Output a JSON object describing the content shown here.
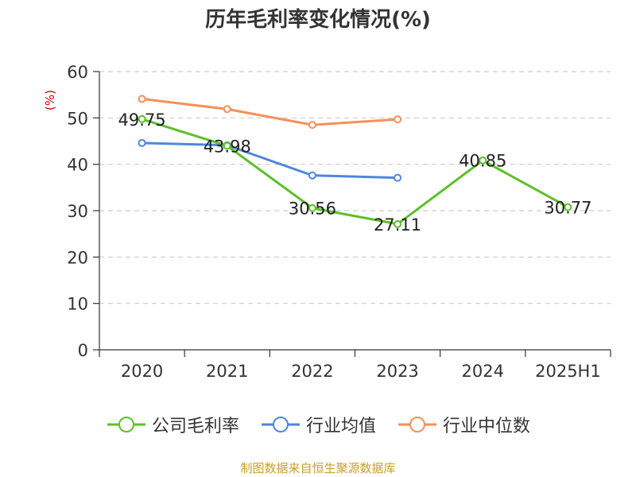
{
  "chart_data": {
    "type": "line",
    "title": "历年毛利率变化情况(%)",
    "ylabel": "(%)",
    "xlabel": "",
    "categories": [
      "2020",
      "2021",
      "2022",
      "2023",
      "2024",
      "2025H1"
    ],
    "ylim": [
      0,
      60
    ],
    "yticks": [
      0,
      10,
      20,
      30,
      40,
      50,
      60
    ],
    "grid": true,
    "legend_position": "bottom",
    "series": [
      {
        "name": "公司毛利率",
        "color": "#5dbf2a",
        "values": [
          49.75,
          43.98,
          30.56,
          27.11,
          40.85,
          30.77
        ],
        "labels": [
          "49.75",
          "43.98",
          "30.56",
          "27.11",
          "40.85",
          "30.77"
        ]
      },
      {
        "name": "行业均值",
        "color": "#4f86e0",
        "values": [
          44.6,
          44.1,
          37.6,
          37.1,
          null,
          null
        ]
      },
      {
        "name": "行业中位数",
        "color": "#f5905a",
        "values": [
          54.1,
          51.9,
          48.5,
          49.7,
          null,
          null
        ]
      }
    ]
  },
  "footer": "制图数据来自恒生聚源数据库"
}
